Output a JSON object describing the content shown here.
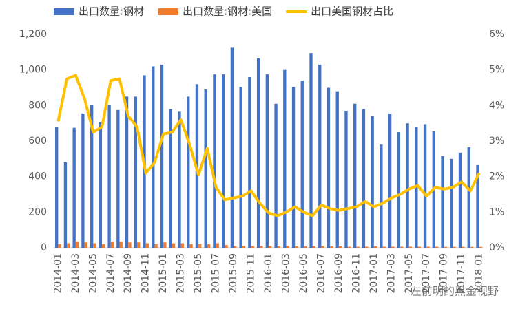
{
  "chart_data": {
    "type": "bar",
    "categories": [
      "2014-01",
      null,
      "2014-03",
      null,
      "2014-05",
      null,
      "2014-07",
      null,
      "2014-09",
      null,
      "2014-11",
      null,
      "2015-01",
      null,
      "2015-03",
      null,
      "2015-05",
      null,
      "2015-07",
      null,
      "2015-09",
      null,
      "2015-11",
      null,
      "2016-01",
      null,
      "2016-03",
      null,
      "2016-05",
      null,
      "2016-07",
      null,
      "2016-09",
      null,
      "2016-11",
      null,
      "2017-01",
      null,
      "2017-03",
      null,
      "2017-05",
      null,
      "2017-07",
      null,
      "2017-09",
      null,
      "2017-11",
      null,
      "2018-01"
    ],
    "series": [
      {
        "name": "出口数量:钢材",
        "type": "bar",
        "color": "#4472c4",
        "values": [
          680,
          480,
          675,
          755,
          805,
          705,
          805,
          775,
          850,
          850,
          970,
          1020,
          1030,
          780,
          765,
          850,
          920,
          890,
          975,
          975,
          1125,
          905,
          960,
          1065,
          975,
          810,
          1000,
          905,
          940,
          1095,
          1030,
          900,
          880,
          770,
          810,
          780,
          740,
          580,
          755,
          650,
          700,
          680,
          695,
          655,
          515,
          500,
          535,
          565,
          465
        ]
      },
      {
        "name": "出口数量:钢材:美国",
        "type": "bar",
        "color": "#ed7d31",
        "values": [
          20,
          25,
          35,
          30,
          25,
          20,
          35,
          35,
          30,
          30,
          25,
          20,
          30,
          25,
          25,
          20,
          20,
          20,
          25,
          15,
          10,
          10,
          10,
          10,
          10,
          8,
          10,
          8,
          8,
          8,
          10,
          8,
          8,
          6,
          6,
          6,
          8,
          6,
          6,
          6,
          6,
          6,
          6,
          6,
          5,
          5,
          5,
          5,
          5
        ]
      },
      {
        "name": "出口美国钢材占比",
        "type": "line",
        "axis": "y2",
        "color": "#ffc000",
        "values": [
          3.55,
          4.75,
          4.85,
          4.2,
          3.25,
          3.4,
          4.7,
          4.75,
          3.7,
          3.4,
          2.1,
          2.4,
          3.2,
          3.25,
          3.6,
          2.9,
          2.05,
          2.8,
          1.7,
          1.35,
          1.4,
          1.45,
          1.6,
          1.25,
          0.98,
          0.9,
          1.0,
          1.15,
          1.0,
          0.9,
          1.2,
          1.1,
          1.05,
          1.1,
          1.15,
          1.3,
          1.15,
          1.25,
          1.4,
          1.5,
          1.65,
          1.75,
          1.45,
          1.7,
          1.65,
          1.7,
          1.85,
          1.6,
          2.1
        ]
      }
    ],
    "ylim": [
      0,
      1200
    ],
    "yticks": [
      0,
      200,
      400,
      600,
      800,
      {
        "value": 1000,
        "label": "1,000"
      },
      {
        "value": 1200,
        "label": "1,200"
      }
    ],
    "y2lim": [
      0,
      6
    ],
    "y2ticks": [
      {
        "value": 0,
        "label": "0%"
      },
      {
        "value": 1,
        "label": "1%"
      },
      {
        "value": 2,
        "label": "2%"
      },
      {
        "value": 3,
        "label": "3%"
      },
      {
        "value": 4,
        "label": "4%"
      },
      {
        "value": 5,
        "label": "5%"
      },
      {
        "value": 6,
        "label": "6%"
      }
    ],
    "grid": false,
    "legend": "top",
    "watermark": "左前明的黑金视野"
  }
}
